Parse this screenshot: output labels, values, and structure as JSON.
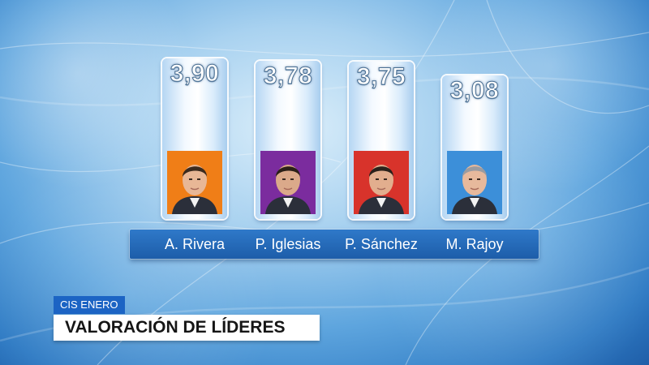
{
  "chart_data": {
    "type": "bar",
    "categories": [
      "A. Rivera",
      "P. Iglesias",
      "P. Sánchez",
      "M. Rajoy"
    ],
    "values": [
      3.9,
      3.78,
      3.75,
      3.08
    ],
    "value_labels": [
      "3,90",
      "3,78",
      "3,75",
      "3,08"
    ],
    "bar_colors": [
      "#f07e17",
      "#7b2c9e",
      "#d8332b",
      "#3c8fd9"
    ],
    "icons": [
      "person-photo-icon",
      "person-photo-icon",
      "person-photo-icon",
      "person-photo-icon"
    ]
  },
  "caption": {
    "source": "CIS ENERO",
    "title": "VALORACIÓN DE LÍDERES"
  },
  "colors": {
    "background": "#5ea5de",
    "names_bar": "#2568b8",
    "caption_tag": "#1c64c4"
  }
}
